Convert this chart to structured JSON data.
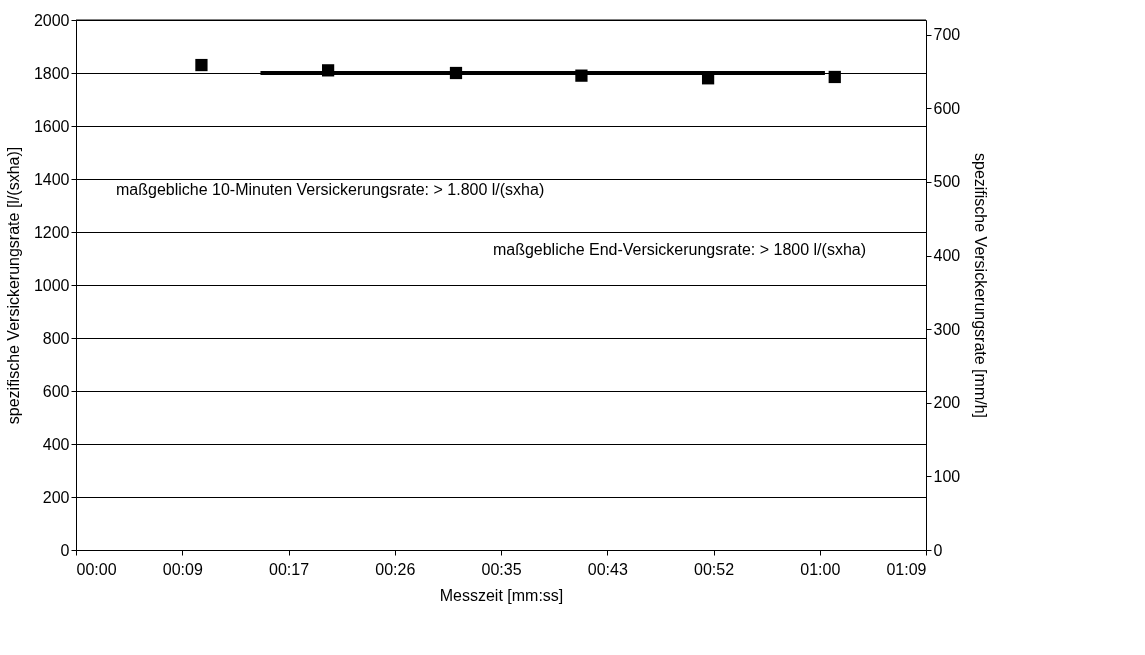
{
  "chart_data": {
    "type": "scatter",
    "xlabel": "Messzeit [mm:ss]",
    "ylabel": "spezifische Versickerungsrate [l/(sxha)]",
    "y2label": "spezifische Versickerungsrate [mm/h]",
    "series": [
      {
        "color": "#000000",
        "marker": "square",
        "x": [
          10.2,
          20.5,
          30.9,
          41.1,
          51.4,
          61.7
        ],
        "values": [
          1830,
          1810,
          1800,
          1790,
          1780,
          1785
        ]
      },
      {
        "type": "line",
        "color": "#000000",
        "marker": "none",
        "line_style": "solid",
        "x": [
          15.0,
          60.9
        ],
        "values": [
          1800,
          1800
        ]
      }
    ],
    "xlim": [
      0,
      69.12
    ],
    "xticks": [
      {
        "value": 0,
        "label": "00:00"
      },
      {
        "value": 8.64,
        "label": "00:09"
      },
      {
        "value": 17.28,
        "label": "00:17"
      },
      {
        "value": 25.92,
        "label": "00:26"
      },
      {
        "value": 34.56,
        "label": "00:35"
      },
      {
        "value": 43.2,
        "label": "00:43"
      },
      {
        "value": 51.84,
        "label": "00:52"
      },
      {
        "value": 60.48,
        "label": "01:00"
      },
      {
        "value": 69.12,
        "label": "01:09"
      }
    ],
    "ylim": [
      0,
      2000
    ],
    "yticks": [
      0,
      200,
      400,
      600,
      800,
      1000,
      1200,
      1400,
      1600,
      1800,
      2000
    ],
    "y2lim": [
      0,
      720
    ],
    "y2ticks": [
      0,
      100,
      200,
      300,
      400,
      500,
      600,
      700
    ],
    "annotations": [
      "maßgebliche 10-Minuten Versickerungsrate: > 1.800 l/(sxha)",
      "maßgebliche End-Versickerungsrate: > 1800 l/(sxha)"
    ],
    "grid": "y"
  }
}
